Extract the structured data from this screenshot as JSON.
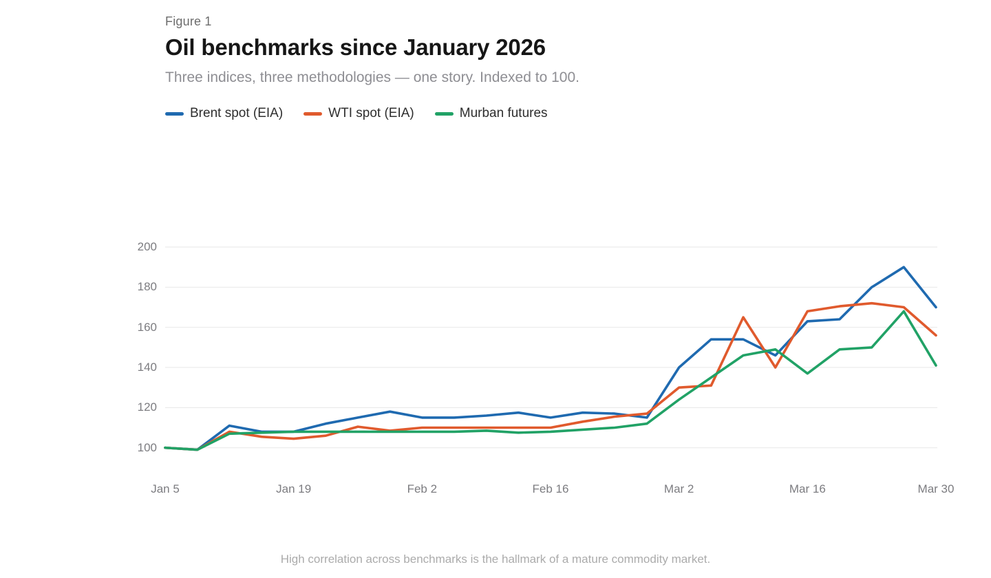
{
  "header": {
    "kicker": "Figure 1",
    "title": "Oil benchmarks since January 2026",
    "subtitle": "Three indices, three methodologies — one story. Indexed to 100."
  },
  "footer": "High correlation across benchmarks is the hallmark of a mature commodity market.",
  "legend": [
    {
      "label": "Brent spot (EIA)",
      "color": "#1F6AB0"
    },
    {
      "label": "WTI spot (EIA)",
      "color": "#E05A2D"
    },
    {
      "label": "Murban futures",
      "color": "#21A266"
    }
  ],
  "chart_data": {
    "type": "line",
    "title": "Oil benchmarks since January 2026",
    "subtitle": "Three indices, three methodologies — one story. Indexed to 100.",
    "grid": "horizontal",
    "legend_position": "top",
    "baseline_value": 100,
    "y_ticks": [
      100,
      120,
      140,
      160,
      180,
      200
    ],
    "ylim": [
      95,
      205
    ],
    "x_tick_labels": [
      "Jan 5",
      "Jan 19",
      "Feb 2",
      "Feb 16",
      "Mar 2",
      "Mar 16",
      "Mar 30"
    ],
    "x_tick_point_indices": [
      0,
      4,
      8,
      12,
      16,
      20,
      24
    ],
    "points_per_series": 25,
    "series": [
      {
        "name": "Brent spot (EIA)",
        "color": "#1F6AB0",
        "values": [
          100,
          99,
          111,
          108,
          108,
          112,
          115,
          118,
          115,
          115,
          116,
          117.5,
          115,
          117.5,
          117,
          115,
          140,
          154,
          154,
          146,
          163,
          164,
          180,
          190,
          170
        ]
      },
      {
        "name": "WTI spot (EIA)",
        "color": "#E05A2D",
        "values": [
          100,
          99,
          108,
          105.5,
          104.5,
          106,
          110.5,
          108.5,
          110,
          110,
          110,
          110,
          110,
          113,
          115.5,
          117,
          130,
          131,
          165,
          140,
          168,
          170.5,
          172,
          170,
          156
        ]
      },
      {
        "name": "Murban futures",
        "color": "#21A266",
        "values": [
          100,
          99,
          107,
          107.5,
          108,
          108,
          108,
          108,
          108,
          108,
          108.5,
          107.5,
          108,
          109,
          110,
          112,
          124,
          135,
          146,
          149,
          137,
          149,
          150,
          168,
          141
        ]
      }
    ]
  }
}
